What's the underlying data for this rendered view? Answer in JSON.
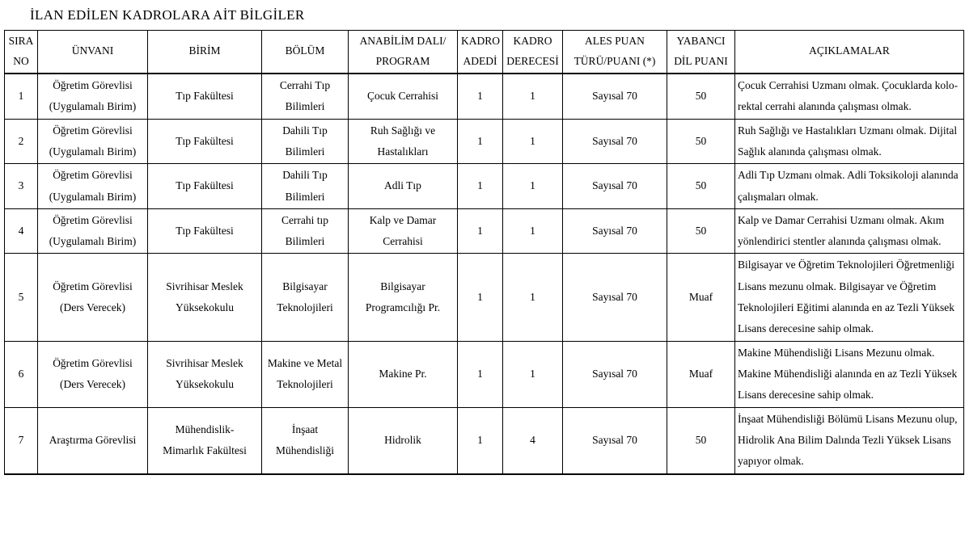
{
  "title": "İLAN EDİLEN KADROLARA AİT BİLGİLER",
  "table": {
    "columns": [
      {
        "key": "no",
        "label": "SIRA\nNO"
      },
      {
        "key": "unvan",
        "label": "ÜNVANI"
      },
      {
        "key": "birim",
        "label": "BİRİM"
      },
      {
        "key": "bolum",
        "label": "BÖLÜM"
      },
      {
        "key": "anabilim",
        "label": "ANABİLİM DALI/\nPROGRAM"
      },
      {
        "key": "adet",
        "label": "KADRO\nADEDİ"
      },
      {
        "key": "derece",
        "label": "KADRO\nDERECESİ"
      },
      {
        "key": "ales",
        "label": "ALES PUAN\nTÜRÜ/PUANI (*)"
      },
      {
        "key": "dil",
        "label": "YABANCI\nDİL PUANI"
      },
      {
        "key": "aciklama",
        "label": "AÇIKLAMALAR"
      }
    ],
    "rows": [
      {
        "no": "1",
        "unvan": "Öğretim Görevlisi\n(Uygulamalı Birim)",
        "birim": "Tıp Fakültesi",
        "bolum": "Cerrahi Tıp\nBilimleri",
        "anabilim": "Çocuk Cerrahisi",
        "adet": "1",
        "derece": "1",
        "ales": "Sayısal 70",
        "dil": "50",
        "aciklama": "Çocuk Cerrahisi Uzmanı olmak. Çocuklarda kolo-rektal cerrahi alanında çalışması olmak."
      },
      {
        "no": "2",
        "unvan": "Öğretim Görevlisi\n(Uygulamalı Birim)",
        "birim": "Tıp Fakültesi",
        "bolum": "Dahili Tıp\nBilimleri",
        "anabilim": "Ruh Sağlığı ve\nHastalıkları",
        "adet": "1",
        "derece": "1",
        "ales": "Sayısal 70",
        "dil": "50",
        "aciklama": "Ruh Sağlığı ve Hastalıkları Uzmanı olmak. Dijital Sağlık alanında çalışması olmak."
      },
      {
        "no": "3",
        "unvan": "Öğretim Görevlisi\n(Uygulamalı Birim)",
        "birim": "Tıp Fakültesi",
        "bolum": "Dahili Tıp\nBilimleri",
        "anabilim": "Adli Tıp",
        "adet": "1",
        "derece": "1",
        "ales": "Sayısal 70",
        "dil": "50",
        "aciklama": "Adli Tıp Uzmanı olmak. Adli Toksikoloji alanında çalışmaları olmak."
      },
      {
        "no": "4",
        "unvan": "Öğretim Görevlisi\n(Uygulamalı Birim)",
        "birim": "Tıp Fakültesi",
        "bolum": "Cerrahi tıp\nBilimleri",
        "anabilim": "Kalp ve Damar\nCerrahisi",
        "adet": "1",
        "derece": "1",
        "ales": "Sayısal 70",
        "dil": "50",
        "aciklama": "Kalp ve Damar Cerrahisi Uzmanı olmak. Akım yönlendirici stentler alanında çalışması olmak."
      },
      {
        "no": "5",
        "unvan": "Öğretim Görevlisi\n(Ders Verecek)",
        "birim": "Sivrihisar Meslek\nYüksekokulu",
        "bolum": "Bilgisayar\nTeknolojileri",
        "anabilim": "Bilgisayar\nProgramcılığı Pr.",
        "adet": "1",
        "derece": "1",
        "ales": "Sayısal 70",
        "dil": "Muaf",
        "aciklama": "Bilgisayar ve Öğretim Teknolojileri Öğretmenliği Lisans mezunu olmak. Bilgisayar ve Öğretim Teknolojileri Eğitimi alanında en az Tezli Yüksek Lisans derecesine sahip olmak."
      },
      {
        "no": "6",
        "unvan": "Öğretim Görevlisi\n(Ders Verecek)",
        "birim": "Sivrihisar Meslek\nYüksekokulu",
        "bolum": "Makine ve Metal\nTeknolojileri",
        "anabilim": "Makine Pr.",
        "adet": "1",
        "derece": "1",
        "ales": "Sayısal 70",
        "dil": "Muaf",
        "aciklama": "Makine Mühendisliği Lisans Mezunu olmak. Makine Mühendisliği alanında en az Tezli Yüksek Lisans derecesine sahip olmak."
      },
      {
        "no": "7",
        "unvan": "Araştırma Görevlisi",
        "birim": "Mühendislik-\nMimarlık Fakültesi",
        "bolum": "İnşaat\nMühendisliği",
        "anabilim": "Hidrolik",
        "adet": "1",
        "derece": "4",
        "ales": "Sayısal 70",
        "dil": "50",
        "aciklama": "İnşaat Mühendisliği Bölümü Lisans Mezunu olup, Hidrolik Ana Bilim Dalında Tezli Yüksek Lisans yapıyor olmak."
      }
    ]
  }
}
